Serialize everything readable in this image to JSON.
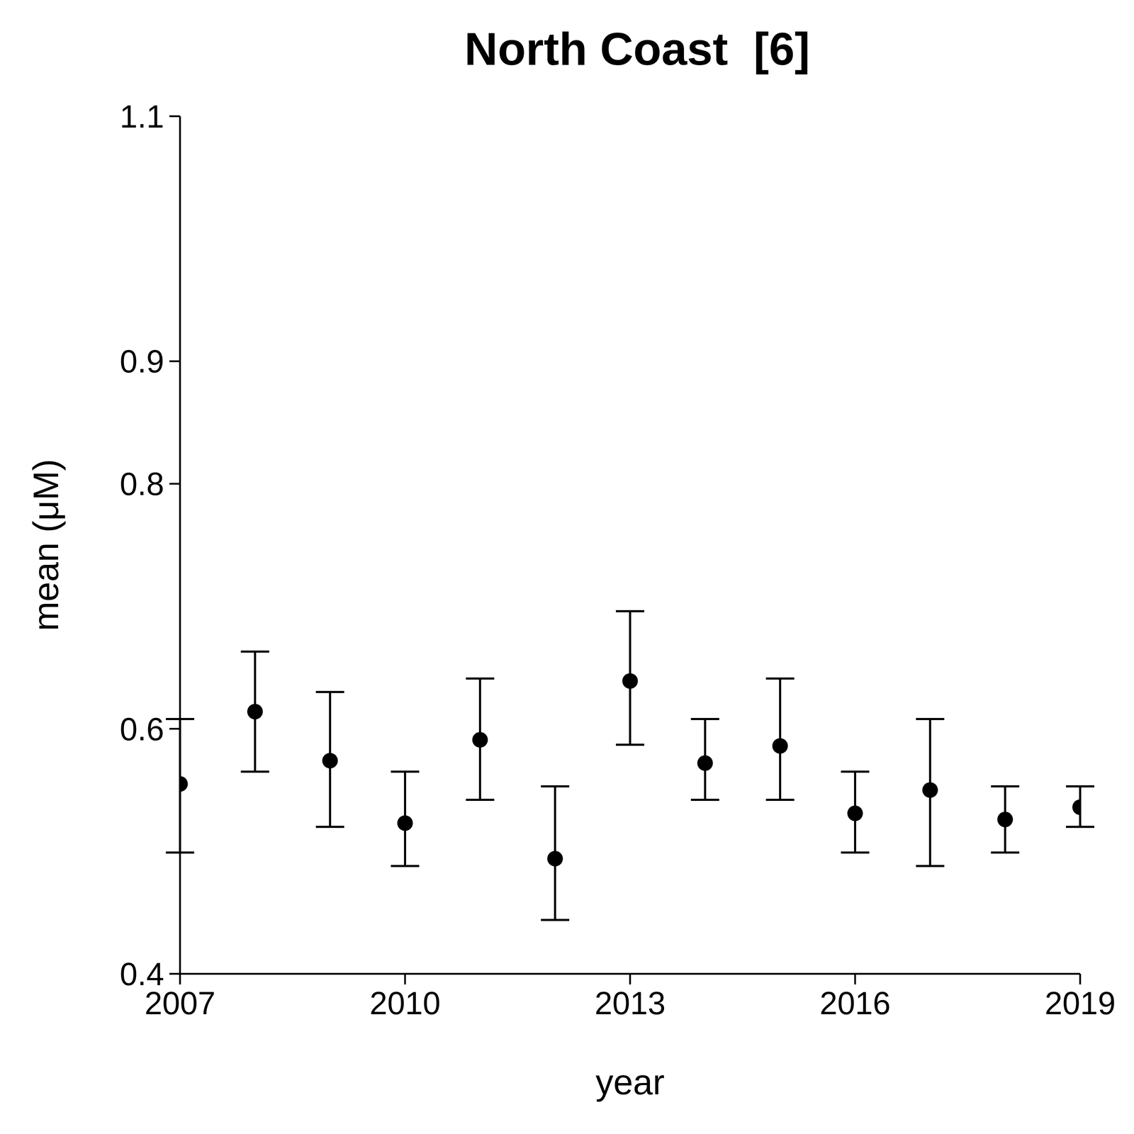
{
  "chart_data": {
    "type": "scatter",
    "title": "North Coast  [6]",
    "x_label": "year",
    "y_label": "mean (μM)",
    "x": [
      2007,
      2008,
      2009,
      2010,
      2011,
      2012,
      2013,
      2014,
      2015,
      2016,
      2017,
      2018,
      2019
    ],
    "values": [
      0.555,
      0.614,
      0.574,
      0.523,
      0.591,
      0.494,
      0.639,
      0.572,
      0.586,
      0.531,
      0.55,
      0.526,
      0.536
    ],
    "error_lower": [
      0.499,
      0.565,
      0.52,
      0.488,
      0.542,
      0.444,
      0.587,
      0.542,
      0.542,
      0.499,
      0.488,
      0.499,
      0.52
    ],
    "error_upper": [
      0.608,
      0.663,
      0.63,
      0.565,
      0.641,
      0.553,
      0.696,
      0.608,
      0.641,
      0.565,
      0.608,
      0.553,
      0.553
    ],
    "xlim": [
      2007,
      2019
    ],
    "xticks": [
      2007,
      2010,
      2013,
      2016,
      2019
    ],
    "ylim": [
      0.4,
      1.1
    ],
    "yticks": [
      0.4,
      0.6,
      0.8,
      0.9,
      1.1
    ],
    "color": "#000000",
    "marker": "circle",
    "grid": false
  }
}
